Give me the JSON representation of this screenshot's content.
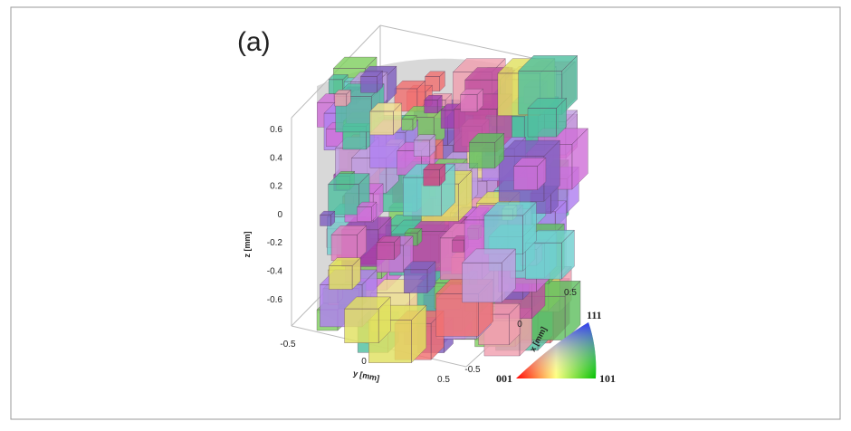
{
  "figure": {
    "panel_label": "(a)",
    "z_axis": {
      "label": "z [mm]",
      "ticks": [
        "0.6",
        "0.4",
        "0.2",
        "0",
        "-0.2",
        "-0.4",
        "-0.6"
      ]
    },
    "y_axis": {
      "label": "y [mm]",
      "ticks": [
        "-0.5",
        "0",
        "0.5"
      ]
    },
    "x_axis": {
      "label": "x [mm]",
      "ticks": [
        "-0.5",
        "0",
        "0.5"
      ]
    },
    "color_key": {
      "corners": [
        "001",
        "101",
        "111"
      ]
    }
  }
}
